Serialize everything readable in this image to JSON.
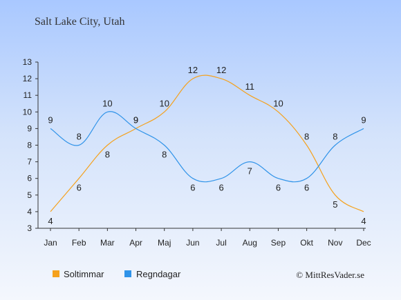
{
  "chart_data": {
    "type": "line",
    "title": "Salt Lake City, Utah",
    "categories": [
      "Jan",
      "Feb",
      "Mar",
      "Apr",
      "Maj",
      "Jun",
      "Jul",
      "Aug",
      "Sep",
      "Okt",
      "Nov",
      "Dec"
    ],
    "series": [
      {
        "name": "Soltimmar",
        "color": "#f5a11c",
        "values": [
          4,
          6,
          8,
          9,
          10,
          12,
          12,
          11,
          10,
          8,
          5,
          4
        ]
      },
      {
        "name": "Regndagar",
        "color": "#2f93e9",
        "values": [
          9,
          8,
          10,
          9,
          8,
          6,
          6,
          7,
          6,
          6,
          8,
          9
        ]
      }
    ],
    "y_ticks": [
      "3",
      "4",
      "5",
      "6",
      "7",
      "8",
      "9",
      "10",
      "11",
      "12",
      "13"
    ],
    "ylim": [
      3,
      13
    ],
    "grid": false,
    "legend_position": "bottom-left"
  },
  "credit": "© MittResVader.se"
}
